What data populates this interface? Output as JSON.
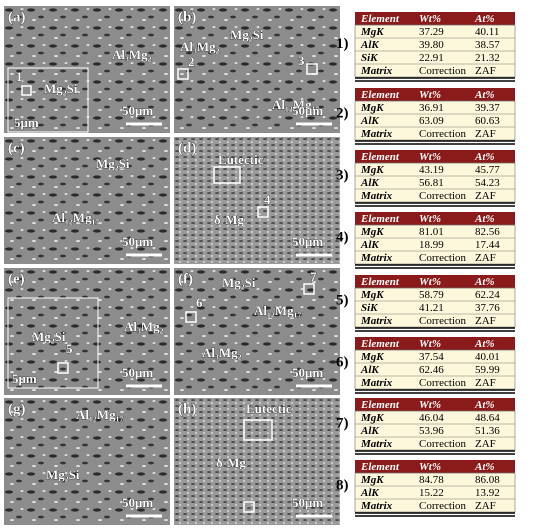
{
  "panels": [
    {
      "label": "(a)",
      "texts": [
        "Al₃Mg₂",
        "1",
        "Mg₂Si",
        "5μm"
      ],
      "scale": "50μm"
    },
    {
      "label": "(b)",
      "texts": [
        "Al₃Mg₂",
        "Mg₂Si",
        "2",
        "3",
        "Al₁₂Mg₁₇"
      ],
      "scale": "50μm"
    },
    {
      "label": "(c)",
      "texts": [
        "Mg₂Si",
        "Al₁₂Mg₁₇"
      ],
      "scale": "50μm"
    },
    {
      "label": "(d)",
      "texts": [
        "Eutectic",
        "δ-Mg",
        "4"
      ],
      "scale": "50μm"
    },
    {
      "label": "(e)",
      "texts": [
        "Mg₂Si",
        "5",
        "5μm",
        "Al₃Mg₂"
      ],
      "scale": "50μm"
    },
    {
      "label": "(f)",
      "texts": [
        "Mg₂Si",
        "7",
        "6",
        "Al₁₂Mg₁₇",
        "Al₃Mg₂"
      ],
      "scale": "50μm"
    },
    {
      "label": "(g)",
      "texts": [
        "Al₁₂Mg₁₇",
        "Mg₂Si"
      ],
      "scale": "50μm"
    },
    {
      "label": "(h)",
      "texts": [
        "Eutectic",
        "δ-Mg"
      ],
      "scale": "50μm"
    }
  ],
  "tables": [
    {
      "number": "1)",
      "header": [
        "Element",
        "Wt%",
        "At%"
      ],
      "rows": [
        [
          "MgK",
          "37.29",
          "40.11"
        ],
        [
          "AlK",
          "39.80",
          "38.57"
        ],
        [
          "SiK",
          "22.91",
          "21.32"
        ],
        [
          "Matrix",
          "Correction",
          "ZAF"
        ]
      ]
    },
    {
      "number": "2)",
      "header": [
        "Element",
        "Wt%",
        "At%"
      ],
      "rows": [
        [
          "MgK",
          "36.91",
          "39.37"
        ],
        [
          "AlK",
          "63.09",
          "60.63"
        ],
        [
          "Matrix",
          "Correction",
          "ZAF"
        ]
      ]
    },
    {
      "number": "3)",
      "header": [
        "Element",
        "Wt%",
        "At%"
      ],
      "rows": [
        [
          "MgK",
          "43.19",
          "45.77"
        ],
        [
          "AlK",
          "56.81",
          "54.23"
        ],
        [
          "Matrix",
          "Correction",
          "ZAF"
        ]
      ]
    },
    {
      "number": "4)",
      "header": [
        "Element",
        "Wt%",
        "At%"
      ],
      "rows": [
        [
          "MgK",
          "81.01",
          "82.56"
        ],
        [
          "AlK",
          "18.99",
          "17.44"
        ],
        [
          "Matrix",
          "Correction",
          "ZAF"
        ]
      ]
    },
    {
      "number": "5)",
      "header": [
        "Element",
        "Wt%",
        "At%"
      ],
      "rows": [
        [
          "MgK",
          "58.79",
          "62.24"
        ],
        [
          "SiK",
          "41.21",
          "37.76"
        ],
        [
          "Matrix",
          "Correction",
          "ZAF"
        ]
      ]
    },
    {
      "number": "6)",
      "header": [
        "Element",
        "Wt%",
        "At%"
      ],
      "rows": [
        [
          "MgK",
          "37.54",
          "40.01"
        ],
        [
          "AlK",
          "62.46",
          "59.99"
        ],
        [
          "Matrix",
          "Correction",
          "ZAF"
        ]
      ]
    },
    {
      "number": "7)",
      "header": [
        "Element",
        "Wt%",
        "At%"
      ],
      "rows": [
        [
          "MgK",
          "46.04",
          "48.64"
        ],
        [
          "AlK",
          "53.96",
          "51.36"
        ],
        [
          "Matrix",
          "Correction",
          "ZAF"
        ]
      ]
    },
    {
      "number": "8)",
      "header": [
        "Element",
        "Wt%",
        "At%"
      ],
      "rows": [
        [
          "MgK",
          "84.78",
          "86.08"
        ],
        [
          "AlK",
          "15.22",
          "13.92"
        ],
        [
          "Matrix",
          "Correction",
          "ZAF"
        ]
      ]
    }
  ]
}
